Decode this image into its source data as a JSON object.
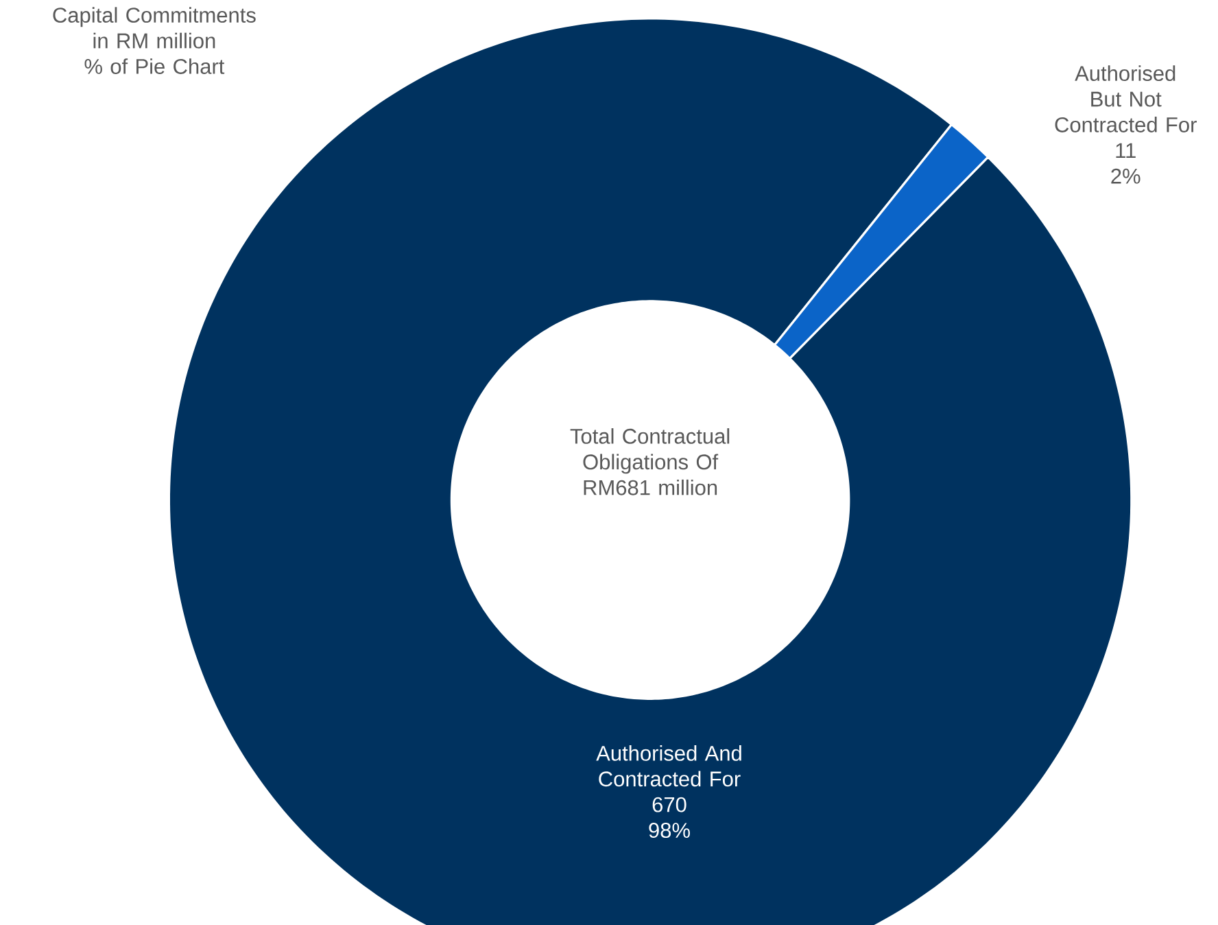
{
  "chart_data": {
    "type": "donut",
    "title": "Capital Commitments in RM million",
    "subtitle": "% of Pie Chart",
    "categories": [
      "Authorised And Contracted For",
      "Authorised But Not Contracted For"
    ],
    "values": [
      670,
      11
    ],
    "colors": [
      "#00325f",
      "#0b64c8"
    ],
    "data_labels": true,
    "annotations": [
      "Total Contractual Obligations Of RM681 million",
      {
        "text": "98%",
        "x": "Authorised And Contracted For"
      },
      {
        "text": "2%",
        "x": "Authorised But Not Contracted For"
      }
    ]
  }
}
